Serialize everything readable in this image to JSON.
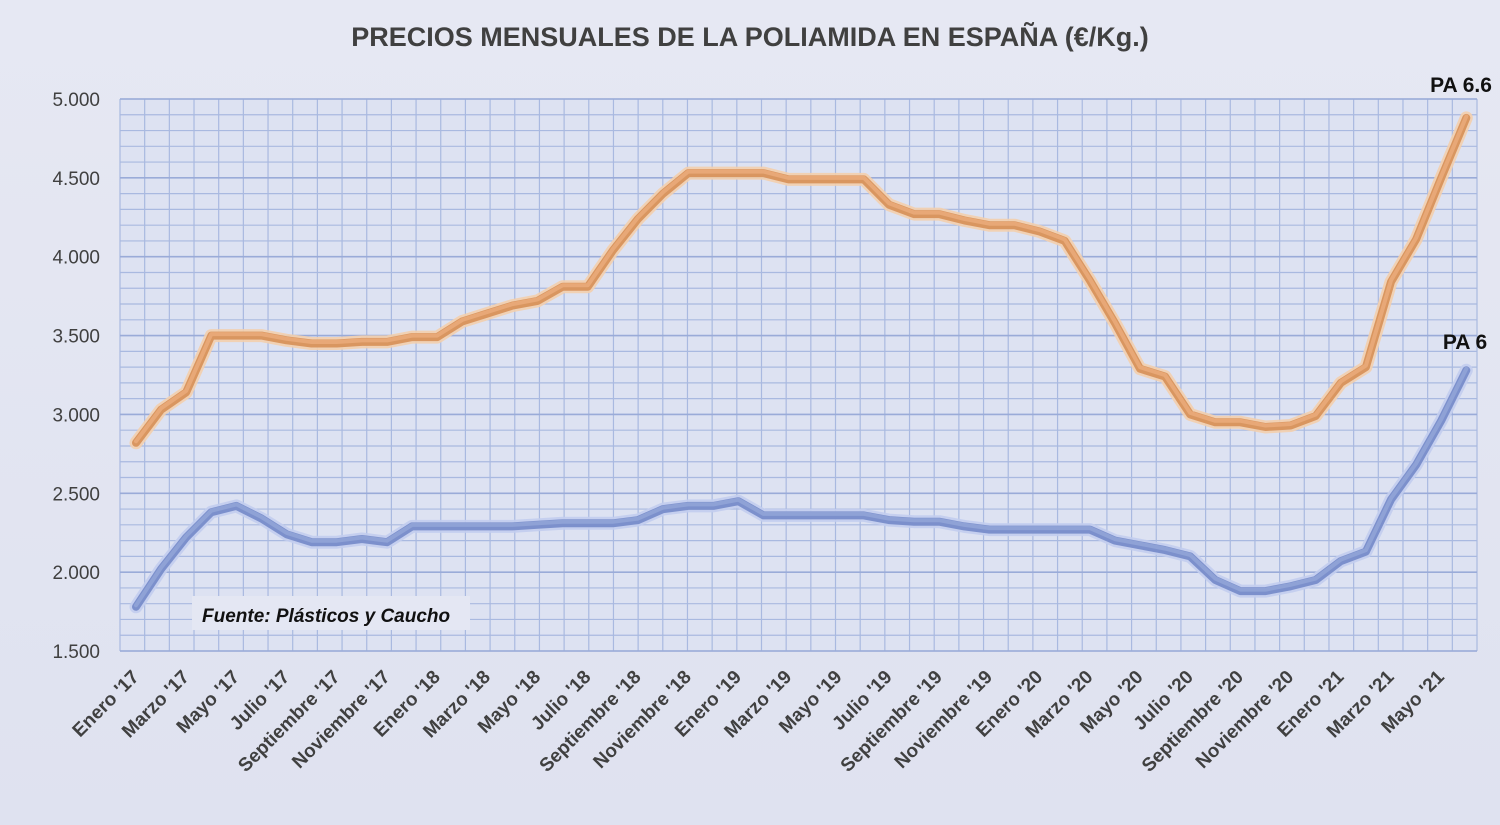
{
  "chart_data": {
    "type": "line",
    "title": "PRECIOS MENSUALES DE LA POLIAMIDA EN ESPAÑA (€/Kg.)",
    "xlabel": "",
    "ylabel": "",
    "ylim": [
      1500,
      5000
    ],
    "yticks": [
      5000,
      4500,
      4000,
      3500,
      3000,
      2500,
      2000,
      1500
    ],
    "ytick_labels": [
      "5.000",
      "4.500",
      "4.000",
      "3.500",
      "3.000",
      "2.500",
      "2.000",
      "1.500"
    ],
    "grid": true,
    "source_note": "Fuente: Plásticos  y Caucho",
    "categories": [
      "Enero '17",
      "Febrero '17",
      "Marzo '17",
      "Abril '17",
      "Mayo '17",
      "Junio '17",
      "Julio '17",
      "Agosto '17",
      "Septiembre  '17",
      "Octubre '17",
      "Noviembre '17",
      "Diciembre '17",
      "Enero '18",
      "Febrero '18",
      "Marzo '18",
      "Abril '18",
      "Mayo '18",
      "Junio '18",
      "Julio '18",
      "Agosto '18",
      "Septiembre  '18",
      "Octubre '18",
      "Noviembre '18",
      "Diciembre '18",
      "Enero '19",
      "Febrero '19",
      "Marzo '19",
      "Abril '19",
      "Mayo '19",
      "Junio '19",
      "Julio '19",
      "Agosto '19",
      "Septiembre '19",
      "Octubre '19",
      "Noviembre '19",
      "Diciembre '19",
      "Enero '20",
      "Febrero '20",
      "Marzo '20",
      "Abril '20",
      "Mayo '20",
      "Junio '20",
      "Julio '20",
      "Agosto '20",
      "Septiembre '20",
      "Octubre '20",
      "Noviembre '20",
      "Diciembre '20",
      "Enero '21",
      "Febrero '21",
      "Marzo '21",
      "Abril '21",
      "Mayo '21",
      "Junio '21"
    ],
    "tick_labels": [
      "Enero '17",
      "Marzo '17",
      "Mayo '17",
      "Julio '17",
      "Septiembre  '17",
      "Noviembre '17",
      "Enero '18",
      "Marzo '18",
      "Mayo '18",
      "Julio '18",
      "Septiembre  '18",
      "Noviembre '18",
      "Enero '19",
      "Marzo '19",
      "Mayo '19",
      "Julio '19",
      "Septiembre '19",
      "Noviembre '19",
      "Enero '20",
      "Marzo '20",
      "Mayo '20",
      "Julio '20",
      "Septiembre '20",
      "Noviembre '20",
      "Enero '21",
      "Marzo '21",
      "Mayo '21"
    ],
    "series": [
      {
        "name": "PA 6.6",
        "color": "#e8a877",
        "values": [
          2820,
          3030,
          3140,
          3500,
          3500,
          3500,
          3470,
          3450,
          3450,
          3460,
          3460,
          3490,
          3490,
          3590,
          3640,
          3690,
          3720,
          3810,
          3810,
          4040,
          4240,
          4400,
          4530,
          4530,
          4530,
          4530,
          4490,
          4490,
          4490,
          4490,
          4330,
          4270,
          4270,
          4230,
          4200,
          4200,
          4160,
          4100,
          3850,
          3580,
          3290,
          3240,
          3000,
          2950,
          2950,
          2920,
          2930,
          2990,
          3200,
          3300,
          3840,
          4110,
          4500,
          4880
        ]
      },
      {
        "name": "PA 6",
        "color": "#8fa2d6",
        "values": [
          1780,
          2020,
          2220,
          2380,
          2420,
          2340,
          2240,
          2190,
          2190,
          2210,
          2190,
          2290,
          2290,
          2290,
          2290,
          2290,
          2300,
          2310,
          2310,
          2310,
          2330,
          2400,
          2420,
          2420,
          2450,
          2360,
          2360,
          2360,
          2360,
          2360,
          2330,
          2320,
          2320,
          2290,
          2270,
          2270,
          2270,
          2270,
          2270,
          2200,
          2170,
          2140,
          2100,
          1950,
          1880,
          1880,
          1910,
          1950,
          2070,
          2130,
          2460,
          2680,
          2960,
          3280
        ]
      }
    ]
  }
}
